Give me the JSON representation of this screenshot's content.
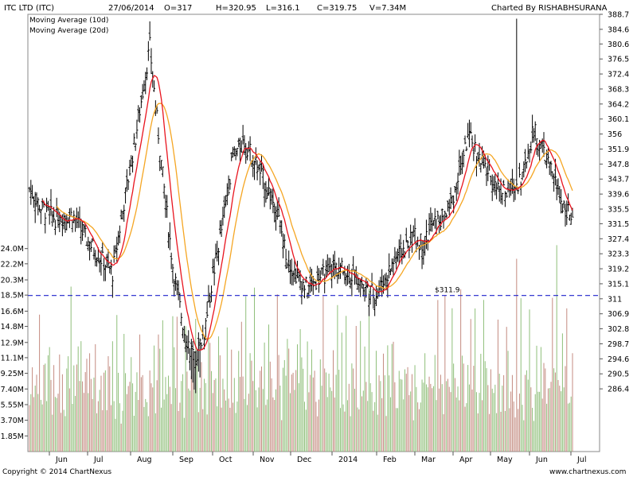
{
  "header": {
    "title": "ITC LTD (ITC)",
    "date": "27/06/2014",
    "open": "O=317",
    "high": "H=320.95",
    "low": "L=316.1",
    "close": "C=319.75",
    "volume": "V=7.34M",
    "charted_by": "Charted By RISHABHSURANA"
  },
  "footer": {
    "copyright": "Copyright © 2014 ChartNexus",
    "website": "www.chartnexus.com"
  },
  "colors": {
    "background": "#ffffff",
    "price_bars": "#000000",
    "ma10": "#e8141e",
    "ma20": "#f5a623",
    "support_line": "#1e22cc",
    "volume_up": "#8fbf7a",
    "volume_down": "#c48b80",
    "grid": "#c8c8c8"
  },
  "chart_data": {
    "type": "ohlc",
    "title": "ITC LTD (ITC)",
    "legend": [
      {
        "name": "Moving Average (10d)",
        "color": "#e8141e"
      },
      {
        "name": "Moving Average (20d)",
        "color": "#f5a623"
      }
    ],
    "price_axis": {
      "ticks": [
        "388.7",
        "384.6",
        "380.6",
        "376.5",
        "372.4",
        "368.3",
        "364.2",
        "360.1",
        "356",
        "351.9",
        "347.8",
        "343.7",
        "339.6",
        "335.5",
        "331.5",
        "327.4",
        "323.3",
        "319.2",
        "315.1",
        "311",
        "306.9",
        "302.8",
        "298.7",
        "294.6",
        "290.5",
        "286.4"
      ],
      "ylim": [
        282.3,
        388.7
      ]
    },
    "volume_axis": {
      "ticks": [
        "24.0M",
        "22.2M",
        "20.3M",
        "18.5M",
        "16.6M",
        "14.8M",
        "12.9M",
        "11.1M",
        "9.25M",
        "7.40M",
        "5.55M",
        "3.70M",
        "1.85M"
      ],
      "max": 25.85
    },
    "x_axis": {
      "labels": [
        "Jun",
        "Jul",
        "Aug",
        "Sep",
        "Oct",
        "Nov",
        "Dec",
        "2014",
        "Feb",
        "Mar",
        "Apr",
        "May",
        "Jun",
        "Jul"
      ]
    },
    "support_line": {
      "value": 311.9,
      "label": "$311.9"
    },
    "price_path": [
      [
        0,
        341
      ],
      [
        8,
        336
      ],
      [
        18,
        333
      ],
      [
        30,
        334
      ],
      [
        40,
        327
      ],
      [
        50,
        322
      ],
      [
        58,
        318
      ],
      [
        65,
        335
      ],
      [
        74,
        355
      ],
      [
        84,
        380
      ],
      [
        92,
        348
      ],
      [
        100,
        320
      ],
      [
        108,
        302
      ],
      [
        115,
        294
      ],
      [
        122,
        302
      ],
      [
        128,
        317
      ],
      [
        135,
        332
      ],
      [
        142,
        350
      ],
      [
        150,
        354
      ],
      [
        158,
        348
      ],
      [
        165,
        342
      ],
      [
        172,
        336
      ],
      [
        180,
        322
      ],
      [
        188,
        316
      ],
      [
        194,
        314
      ],
      [
        200,
        316
      ],
      [
        207,
        318
      ],
      [
        215,
        320
      ],
      [
        222,
        318
      ],
      [
        228,
        317
      ],
      [
        235,
        314
      ],
      [
        241,
        312
      ],
      [
        248,
        316
      ],
      [
        255,
        322
      ],
      [
        262,
        325
      ],
      [
        268,
        328
      ],
      [
        275,
        326
      ],
      [
        281,
        331
      ],
      [
        288,
        333
      ],
      [
        293,
        336
      ],
      [
        297,
        341
      ],
      [
        302,
        349
      ],
      [
        306,
        355
      ],
      [
        310,
        353
      ],
      [
        315,
        348
      ],
      [
        320,
        346
      ],
      [
        326,
        342
      ],
      [
        332,
        340
      ],
      [
        338,
        341
      ],
      [
        344,
        345
      ],
      [
        352,
        357
      ],
      [
        360,
        350
      ],
      [
        366,
        344
      ],
      [
        372,
        337
      ],
      [
        376,
        335
      ],
      [
        380,
        330
      ]
    ],
    "volume_pattern": [
      5.5,
      7.0,
      9.5,
      6.2,
      11.0,
      8.3,
      6.8,
      12.5,
      7.5,
      5.8,
      10.2,
      8.8,
      6.0,
      14.0,
      9.0,
      7.2
    ]
  }
}
